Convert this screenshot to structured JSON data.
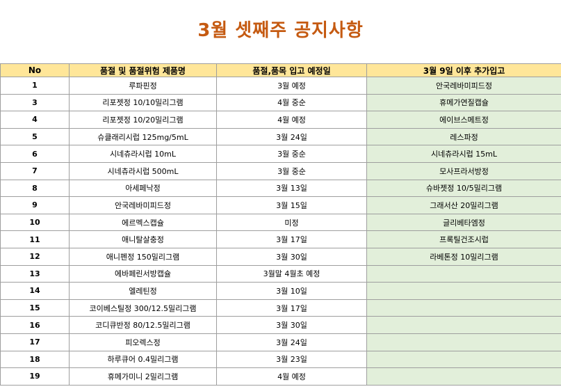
{
  "title": "3월 셋째주 공지사항",
  "columns": [
    "No",
    "품절 및 품절위험 제품명",
    "품절,품목 입고 예정일",
    "3월 9일 이후 추가입고"
  ],
  "rows": [
    {
      "no": "1",
      "product": "루파핀정",
      "eta": "3월 예정",
      "extra": "안국레바미피드정"
    },
    {
      "no": "3",
      "product": "리포젯정 10/10밀리그램",
      "eta": "4월 중순",
      "extra": "휴메가연질캡슐"
    },
    {
      "no": "4",
      "product": "리포젯정 10/20밀리그램",
      "eta": "4월 예정",
      "extra": "에이브스메트정"
    },
    {
      "no": "5",
      "product": "슈클래리시럽 125mg/5mL",
      "eta": "3월 24일",
      "extra": "레스파정"
    },
    {
      "no": "6",
      "product": "시네츄라시럽 10mL",
      "eta": "3월 중순",
      "extra": "시네츄라시럽 15mL"
    },
    {
      "no": "7",
      "product": "시네츄라시럽 500mL",
      "eta": "3월 중순",
      "extra": "모사프라서방정"
    },
    {
      "no": "8",
      "product": "아세페낙정",
      "eta": "3월 13일",
      "extra": "슈바젯정 10/5밀리그램"
    },
    {
      "no": "9",
      "product": "안국레바미피드정",
      "eta": "3월 15일",
      "extra": "그래서산 20밀리그램"
    },
    {
      "no": "10",
      "product": "에르멕스캡슐",
      "eta": "미정",
      "extra": "글리베타엠정"
    },
    {
      "no": "11",
      "product": "애니탈살충정",
      "eta": "3월 17일",
      "extra": "프록틸건조시럽"
    },
    {
      "no": "12",
      "product": "애니펜정 150밀리그램",
      "eta": "3월 30일",
      "extra": "라베톤정 10밀리그램"
    },
    {
      "no": "13",
      "product": "에바페린서방캡슐",
      "eta": "3월말 4월초 예정",
      "extra": ""
    },
    {
      "no": "14",
      "product": "엘레틴정",
      "eta": "3월 10일",
      "extra": ""
    },
    {
      "no": "15",
      "product": "코이베스틸정 300/12.5밀리그램",
      "eta": "3월 17일",
      "extra": ""
    },
    {
      "no": "16",
      "product": "코디큐반정 80/12.5밀리그램",
      "eta": "3월 30일",
      "extra": ""
    },
    {
      "no": "17",
      "product": "피오렉스정",
      "eta": "3월 24일",
      "extra": ""
    },
    {
      "no": "18",
      "product": "하루큐어 0.4밀리그램",
      "eta": "3월 23일",
      "extra": ""
    },
    {
      "no": "19",
      "product": "휴메가미니 2밀리그램",
      "eta": "4월 예정",
      "extra": ""
    }
  ],
  "colors": {
    "title": "#c55a11",
    "header_bg": "#ffe699",
    "extra_col_bg": "#e2efda",
    "grid": "#9e9e9e"
  }
}
